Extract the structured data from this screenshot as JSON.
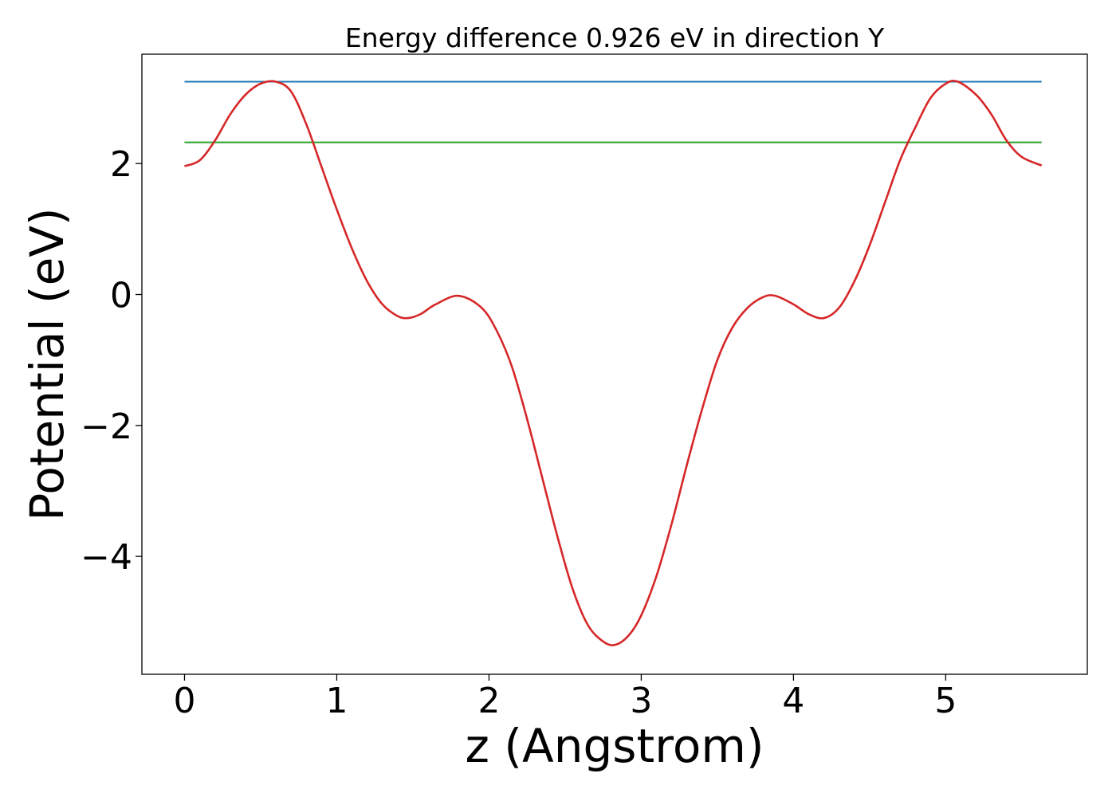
{
  "chart_data": {
    "type": "line",
    "title": "Energy difference 0.926 eV in direction Y",
    "xlabel": "z (Angstrom)",
    "ylabel": "Potential (eV)",
    "xlim": [
      -0.28,
      5.93
    ],
    "ylim": [
      -5.8,
      3.67
    ],
    "xticks": [
      0,
      1,
      2,
      3,
      4,
      5
    ],
    "yticks": [
      -4,
      -2,
      0,
      2
    ],
    "grid": false,
    "legend": "none",
    "series": [
      {
        "color": "#d62728",
        "x": [
          0,
          0.1,
          0.2,
          0.3,
          0.4,
          0.5,
          0.6,
          0.7,
          0.8,
          0.9,
          1.0,
          1.1,
          1.2,
          1.3,
          1.4,
          1.47,
          1.55,
          1.65,
          1.8,
          1.95,
          2.05,
          2.15,
          2.25,
          2.35,
          2.45,
          2.55,
          2.65,
          2.75,
          2.83,
          2.92,
          3.0,
          3.1,
          3.2,
          3.3,
          3.4,
          3.5,
          3.6,
          3.7,
          3.8,
          3.88,
          4.0,
          4.1,
          4.2,
          4.3,
          4.4,
          4.5,
          4.6,
          4.7,
          4.8,
          4.9,
          5.0,
          5.08,
          5.2,
          5.3,
          5.4,
          5.5,
          5.63
        ],
        "y": [
          1.96,
          2.05,
          2.35,
          2.75,
          3.05,
          3.22,
          3.25,
          3.1,
          2.6,
          1.95,
          1.3,
          0.7,
          0.2,
          -0.15,
          -0.33,
          -0.36,
          -0.3,
          -0.15,
          -0.02,
          -0.2,
          -0.55,
          -1.1,
          -1.9,
          -2.8,
          -3.7,
          -4.5,
          -5.05,
          -5.3,
          -5.35,
          -5.2,
          -4.9,
          -4.3,
          -3.5,
          -2.6,
          -1.75,
          -1.0,
          -0.5,
          -0.2,
          -0.04,
          -0.02,
          -0.15,
          -0.3,
          -0.36,
          -0.2,
          0.2,
          0.75,
          1.4,
          2.05,
          2.55,
          3.0,
          3.22,
          3.25,
          3.05,
          2.75,
          2.35,
          2.1,
          1.97
        ]
      },
      {
        "color": "#1f77b4",
        "x": [
          0,
          5.63
        ],
        "y": [
          3.25,
          3.25
        ]
      },
      {
        "color": "#2ca02c",
        "x": [
          0,
          5.63
        ],
        "y": [
          2.324,
          2.324
        ]
      }
    ]
  }
}
